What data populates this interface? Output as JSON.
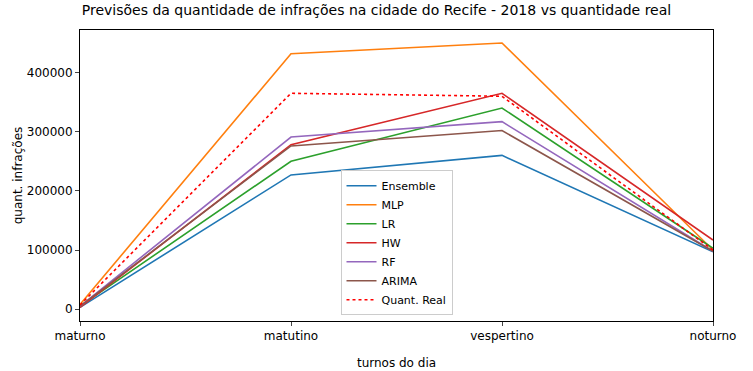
{
  "chart_data": {
    "type": "line",
    "title": "Previsões da quantidade de infrações na cidade do Recife - 2018 vs quantidade real",
    "x_label": "turnos do dia",
    "y_label": "quant. infrações",
    "categories": [
      "maturno",
      "matutino",
      "vespertino",
      "noturno"
    ],
    "series": [
      {
        "name": "Ensemble",
        "color": "#1f77b4",
        "line_style": "solid",
        "values": [
          3000,
          227000,
          260000,
          97000
        ]
      },
      {
        "name": "MLP",
        "color": "#ff7f0e",
        "line_style": "solid",
        "values": [
          8000,
          432000,
          450000,
          100000
        ]
      },
      {
        "name": "LR",
        "color": "#2ca02c",
        "line_style": "solid",
        "values": [
          5000,
          250000,
          340000,
          103000
        ]
      },
      {
        "name": "HW",
        "color": "#d62728",
        "line_style": "solid",
        "values": [
          3000,
          278000,
          365000,
          117000
        ]
      },
      {
        "name": "RF",
        "color": "#9467bd",
        "line_style": "solid",
        "values": [
          5000,
          291000,
          317000,
          98000
        ]
      },
      {
        "name": "ARIMA",
        "color": "#8c564b",
        "line_style": "solid",
        "values": [
          5000,
          276000,
          302000,
          98000
        ]
      },
      {
        "name": "Quant. Real",
        "color": "#ff0000",
        "line_style": "dotted",
        "values": [
          7000,
          365000,
          360000,
          100000
        ]
      }
    ],
    "ylim": [
      -20000,
      472000
    ],
    "yticks": [
      0,
      100000,
      200000,
      300000,
      400000
    ],
    "grid": false,
    "legend": "lower center"
  }
}
